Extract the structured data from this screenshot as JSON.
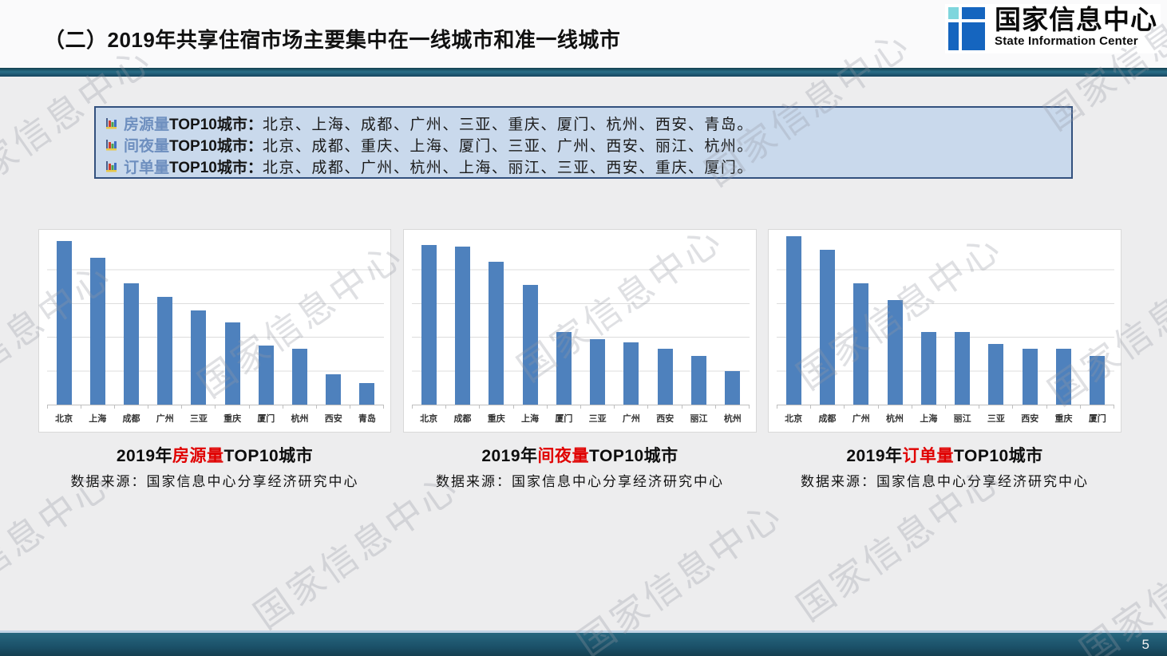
{
  "header": {
    "title": "（二）2019年共享住宿市场主要集中在一线城市和准一线城市"
  },
  "logo": {
    "name_cn": "国家信息中心",
    "name_en": "State Information Center"
  },
  "summary_box": {
    "items": [
      {
        "keyword": "房源量",
        "lead": "TOP10城市：",
        "cities": "北京、上海、成都、广州、三亚、重庆、厦门、杭州、西安、青岛。"
      },
      {
        "keyword": "间夜量",
        "lead": "TOP10城市：",
        "cities": "北京、成都、重庆、上海、厦门、三亚、广州、西安、丽江、杭州。"
      },
      {
        "keyword": "订单量",
        "lead": "TOP10城市：",
        "cities": "北京、成都、广州、杭州、上海、丽江、三亚、西安、重庆、厦门。"
      }
    ]
  },
  "charts": [
    {
      "title_prefix": "2019年",
      "title_highlight": "房源量",
      "title_suffix": "TOP10城市",
      "source": "数据来源：国家信息中心分享经济研究中心"
    },
    {
      "title_prefix": "2019年",
      "title_highlight": "间夜量",
      "title_suffix": "TOP10城市",
      "source": "数据来源：国家信息中心分享经济研究中心"
    },
    {
      "title_prefix": "2019年",
      "title_highlight": "订单量",
      "title_suffix": "TOP10城市",
      "source": "数据来源：国家信息中心分享经济研究中心"
    }
  ],
  "chart_data": [
    {
      "type": "bar",
      "title": "2019年房源量TOP10城市",
      "categories": [
        "北京",
        "上海",
        "成都",
        "广州",
        "三亚",
        "重庆",
        "厦门",
        "杭州",
        "西安",
        "青岛"
      ],
      "values": [
        97,
        87,
        72,
        64,
        56,
        49,
        35,
        33,
        18,
        13
      ],
      "xlabel": "",
      "ylabel": "",
      "ylim": [
        0,
        100
      ],
      "gridlines": 5,
      "legend": "none",
      "bar_color": "#4e81bd",
      "values_note": "y-axis unlabeled in source; values are relative heights with top gridline = 100"
    },
    {
      "type": "bar",
      "title": "2019年间夜量TOP10城市",
      "categories": [
        "北京",
        "成都",
        "重庆",
        "上海",
        "厦门",
        "三亚",
        "广州",
        "西安",
        "丽江",
        "杭州"
      ],
      "values": [
        95,
        94,
        85,
        71,
        43,
        39,
        37,
        33,
        29,
        20
      ],
      "xlabel": "",
      "ylabel": "",
      "ylim": [
        0,
        100
      ],
      "gridlines": 5,
      "legend": "none",
      "bar_color": "#4e81bd",
      "values_note": "y-axis unlabeled in source; values are relative heights with top gridline = 100"
    },
    {
      "type": "bar",
      "title": "2019年订单量TOP10城市",
      "categories": [
        "北京",
        "成都",
        "广州",
        "杭州",
        "上海",
        "丽江",
        "三亚",
        "西安",
        "重庆",
        "厦门"
      ],
      "values": [
        100,
        92,
        72,
        62,
        43,
        43,
        36,
        33,
        33,
        29
      ],
      "xlabel": "",
      "ylabel": "",
      "ylim": [
        0,
        100
      ],
      "gridlines": 5,
      "legend": "none",
      "bar_color": "#4e81bd",
      "values_note": "y-axis unlabeled in source; values are relative heights with top gridline = 100"
    }
  ],
  "footer": {
    "page_number": "5"
  },
  "watermark": {
    "text": "国家信息中心"
  },
  "colors": {
    "bar": "#4e81bd",
    "accent_teal": "#1b5169",
    "summary_bg": "#c9d9ec",
    "summary_border": "#33517e",
    "keyword_blue": "#6e8fbf",
    "highlight_red": "#e00000",
    "logo_blue": "#1565bf",
    "logo_cyan": "#7fd6dd",
    "slide_bg": "#ededee"
  }
}
